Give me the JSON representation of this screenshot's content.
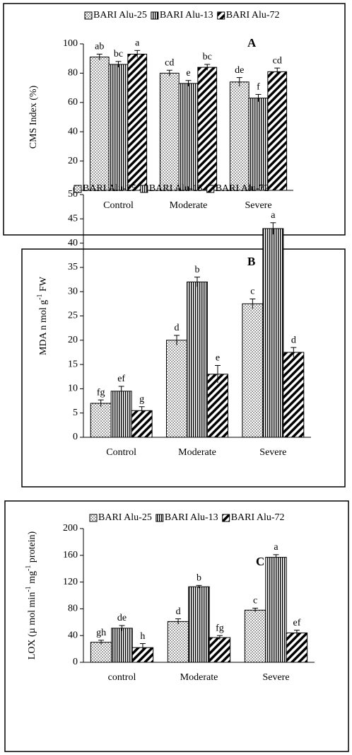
{
  "chart_data": [
    {
      "type": "bar",
      "panel_label": "A",
      "y_label_parts": [
        {
          "text": "CMS Index (%)"
        }
      ],
      "categories": [
        "Control",
        "Moderate",
        "Severe"
      ],
      "ylim": [
        0,
        100
      ],
      "yticks": [
        0,
        20,
        40,
        60,
        80,
        100
      ],
      "series": [
        {
          "name": "BARI Alu-25",
          "pattern": "dots",
          "color": "#000000",
          "values": [
            91,
            80,
            74
          ],
          "errors": [
            2,
            2,
            3
          ],
          "letters": [
            "ab",
            "cd",
            "de"
          ]
        },
        {
          "name": "BARI Alu-13",
          "pattern": "vlines",
          "color": "#000000",
          "values": [
            86,
            73,
            63
          ],
          "errors": [
            2,
            2,
            2.5
          ],
          "letters": [
            "bc",
            "e",
            "f"
          ]
        },
        {
          "name": "BARI Alu-72",
          "pattern": "diag",
          "color": "#000000",
          "values": [
            93,
            84,
            81
          ],
          "errors": [
            2.5,
            2,
            2.5
          ],
          "letters": [
            "a",
            "bc",
            "cd"
          ]
        }
      ]
    },
    {
      "type": "bar",
      "panel_label": "B",
      "y_label_parts": [
        {
          "text": "MDA n mol g"
        },
        {
          "text": "-1",
          "sup": true
        },
        {
          "text": " FW"
        }
      ],
      "categories": [
        "Control",
        "Moderate",
        "Severe"
      ],
      "ylim": [
        0,
        50
      ],
      "yticks": [
        0,
        5,
        10,
        15,
        20,
        25,
        30,
        35,
        40,
        45,
        50
      ],
      "series": [
        {
          "name": "BARI Alu-25",
          "pattern": "dots",
          "color": "#000000",
          "values": [
            7,
            20,
            27.5
          ],
          "errors": [
            0.7,
            1,
            1
          ],
          "letters": [
            "fg",
            "d",
            "c"
          ]
        },
        {
          "name": "BARI Alu-13",
          "pattern": "vlines",
          "color": "#000000",
          "values": [
            9.5,
            32,
            43
          ],
          "errors": [
            1,
            1,
            1.2
          ],
          "letters": [
            "ef",
            "b",
            "a"
          ]
        },
        {
          "name": "BARI Alu-72",
          "pattern": "diag",
          "color": "#000000",
          "values": [
            5.5,
            13,
            17.5
          ],
          "errors": [
            0.8,
            1.8,
            1
          ],
          "letters": [
            "g",
            "e",
            "d"
          ]
        }
      ]
    },
    {
      "type": "bar",
      "panel_label": "C",
      "y_label_parts": [
        {
          "text": "LOX (µ mol min"
        },
        {
          "text": "-1",
          "sup": true
        },
        {
          "text": " mg"
        },
        {
          "text": "-1",
          "sup": true
        },
        {
          "text": " protein)"
        }
      ],
      "categories": [
        "control",
        "Moderate",
        "Severe"
      ],
      "ylim": [
        0,
        200
      ],
      "yticks": [
        0,
        40,
        80,
        120,
        160,
        200
      ],
      "series": [
        {
          "name": "BARI Alu-25",
          "pattern": "dots",
          "color": "#000000",
          "values": [
            30,
            61,
            78
          ],
          "errors": [
            3,
            4,
            3
          ],
          "letters": [
            "gh",
            "d",
            "c"
          ]
        },
        {
          "name": "BARI Alu-13",
          "pattern": "vlines",
          "color": "#000000",
          "values": [
            51,
            113,
            157
          ],
          "errors": [
            4,
            2,
            4
          ],
          "letters": [
            "de",
            "b",
            "a"
          ]
        },
        {
          "name": "BARI Alu-72",
          "pattern": "diag",
          "color": "#000000",
          "values": [
            22,
            37,
            44
          ],
          "errors": [
            6,
            3,
            4
          ],
          "letters": [
            "h",
            "fg",
            "ef"
          ]
        }
      ]
    }
  ]
}
